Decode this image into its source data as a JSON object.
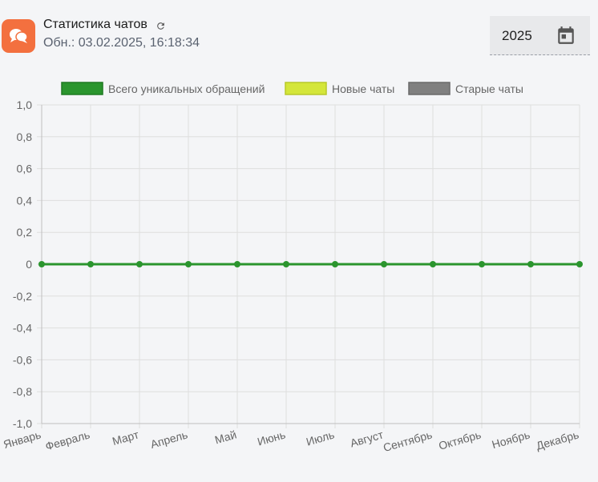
{
  "header": {
    "title": "Статистика чатов",
    "updated": "Обн.: 03.02.2025, 16:18:34"
  },
  "year_picker": {
    "value": "2025"
  },
  "icons": {
    "app": "chat-bubbles-icon",
    "refresh": "refresh-icon",
    "calendar": "calendar-icon"
  },
  "colors": {
    "app_icon_bg": "#f3703f",
    "series_total": "#2b952e",
    "series_new": "#d4e63a",
    "series_old": "#808080"
  },
  "chart_data": {
    "type": "line",
    "categories": [
      "Январь",
      "Февраль",
      "Март",
      "Апрель",
      "Май",
      "Июнь",
      "Июль",
      "Август",
      "Сентябрь",
      "Октябрь",
      "Ноябрь",
      "Декабрь"
    ],
    "series": [
      {
        "name": "Всего уникальных обращений",
        "color": "#2b952e",
        "values": [
          0,
          0,
          0,
          0,
          0,
          0,
          0,
          0,
          0,
          0,
          0,
          0
        ]
      },
      {
        "name": "Новые чаты",
        "color": "#d4e63a",
        "values": [
          0,
          0,
          0,
          0,
          0,
          0,
          0,
          0,
          0,
          0,
          0,
          0
        ]
      },
      {
        "name": "Старые чаты",
        "color": "#808080",
        "values": [
          0,
          0,
          0,
          0,
          0,
          0,
          0,
          0,
          0,
          0,
          0,
          0
        ]
      }
    ],
    "ylim": [
      -1.0,
      1.0
    ],
    "yticks": [
      "1,0",
      "0,8",
      "0,6",
      "0,4",
      "0,2",
      "0",
      "-0,2",
      "-0,4",
      "-0,6",
      "-0,8",
      "-1,0"
    ],
    "grid": true,
    "legend_position": "top"
  }
}
